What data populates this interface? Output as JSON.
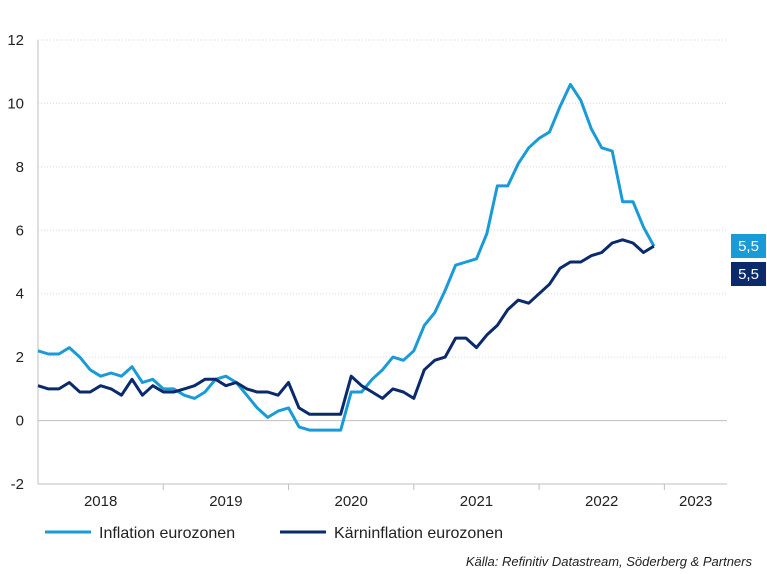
{
  "chart_data": {
    "type": "line",
    "ylim": [
      -2,
      12
    ],
    "yticks": [
      -2,
      0,
      2,
      4,
      6,
      8,
      10,
      12
    ],
    "ytick_labels": [
      "-2",
      "0",
      "2",
      "4",
      "6",
      "8",
      "10",
      "12"
    ],
    "x_start": "2018-01",
    "x_end": "2023-07",
    "year_labels": [
      "2018",
      "2019",
      "2020",
      "2021",
      "2022",
      "2023"
    ],
    "grid": "horizontal",
    "legend_position": "bottom-left",
    "series": [
      {
        "name": "Inflation eurozonen",
        "color": "#1a9bd7",
        "end_label": "5,5",
        "values": [
          {
            "x": "2018-01",
            "y": 2.2
          },
          {
            "x": "2018-02",
            "y": 2.1
          },
          {
            "x": "2018-03",
            "y": 2.1
          },
          {
            "x": "2018-04",
            "y": 2.3
          },
          {
            "x": "2018-05",
            "y": 2.0
          },
          {
            "x": "2018-06",
            "y": 1.6
          },
          {
            "x": "2018-07",
            "y": 1.4
          },
          {
            "x": "2018-08",
            "y": 1.5
          },
          {
            "x": "2018-09",
            "y": 1.4
          },
          {
            "x": "2018-10",
            "y": 1.7
          },
          {
            "x": "2018-11",
            "y": 1.2
          },
          {
            "x": "2018-12",
            "y": 1.3
          },
          {
            "x": "2019-01",
            "y": 1.0
          },
          {
            "x": "2019-02",
            "y": 1.0
          },
          {
            "x": "2019-03",
            "y": 0.8
          },
          {
            "x": "2019-04",
            "y": 0.7
          },
          {
            "x": "2019-05",
            "y": 0.9
          },
          {
            "x": "2019-06",
            "y": 1.3
          },
          {
            "x": "2019-07",
            "y": 1.4
          },
          {
            "x": "2019-08",
            "y": 1.2
          },
          {
            "x": "2019-09",
            "y": 0.8
          },
          {
            "x": "2019-10",
            "y": 0.4
          },
          {
            "x": "2019-11",
            "y": 0.1
          },
          {
            "x": "2019-12",
            "y": 0.3
          },
          {
            "x": "2020-01",
            "y": 0.4
          },
          {
            "x": "2020-02",
            "y": -0.2
          },
          {
            "x": "2020-03",
            "y": -0.3
          },
          {
            "x": "2020-04",
            "y": -0.3
          },
          {
            "x": "2020-05",
            "y": -0.3
          },
          {
            "x": "2020-06",
            "y": -0.3
          },
          {
            "x": "2020-07",
            "y": 0.9
          },
          {
            "x": "2020-08",
            "y": 0.9
          },
          {
            "x": "2020-09",
            "y": 1.3
          },
          {
            "x": "2020-10",
            "y": 1.6
          },
          {
            "x": "2020-11",
            "y": 2.0
          },
          {
            "x": "2020-12",
            "y": 1.9
          },
          {
            "x": "2021-01",
            "y": 2.2
          },
          {
            "x": "2021-02",
            "y": 3.0
          },
          {
            "x": "2021-03",
            "y": 3.4
          },
          {
            "x": "2021-04",
            "y": 4.1
          },
          {
            "x": "2021-05",
            "y": 4.9
          },
          {
            "x": "2021-06",
            "y": 5.0
          },
          {
            "x": "2021-07",
            "y": 5.1
          },
          {
            "x": "2021-08",
            "y": 5.9
          },
          {
            "x": "2021-09",
            "y": 7.4
          },
          {
            "x": "2021-10",
            "y": 7.4
          },
          {
            "x": "2021-11",
            "y": 8.1
          },
          {
            "x": "2021-12",
            "y": 8.6
          },
          {
            "x": "2022-01",
            "y": 8.9
          },
          {
            "x": "2022-02",
            "y": 9.1
          },
          {
            "x": "2022-03",
            "y": 9.9
          },
          {
            "x": "2022-04",
            "y": 10.6
          },
          {
            "x": "2022-05",
            "y": 10.1
          },
          {
            "x": "2022-06",
            "y": 9.2
          },
          {
            "x": "2022-07",
            "y": 8.6
          },
          {
            "x": "2022-08",
            "y": 8.5
          },
          {
            "x": "2022-09",
            "y": 6.9
          },
          {
            "x": "2022-10",
            "y": 6.9
          },
          {
            "x": "2022-11",
            "y": 6.1
          },
          {
            "x": "2022-12",
            "y": 5.5
          }
        ]
      },
      {
        "name": "Kärninflation eurozonen",
        "color": "#0b2a6b",
        "end_label": "5,5",
        "values": [
          {
            "x": "2018-01",
            "y": 1.1
          },
          {
            "x": "2018-02",
            "y": 1.0
          },
          {
            "x": "2018-03",
            "y": 1.0
          },
          {
            "x": "2018-04",
            "y": 1.2
          },
          {
            "x": "2018-05",
            "y": 0.9
          },
          {
            "x": "2018-06",
            "y": 0.9
          },
          {
            "x": "2018-07",
            "y": 1.1
          },
          {
            "x": "2018-08",
            "y": 1.0
          },
          {
            "x": "2018-09",
            "y": 0.8
          },
          {
            "x": "2018-10",
            "y": 1.3
          },
          {
            "x": "2018-11",
            "y": 0.8
          },
          {
            "x": "2018-12",
            "y": 1.1
          },
          {
            "x": "2019-01",
            "y": 0.9
          },
          {
            "x": "2019-02",
            "y": 0.9
          },
          {
            "x": "2019-03",
            "y": 1.0
          },
          {
            "x": "2019-04",
            "y": 1.1
          },
          {
            "x": "2019-05",
            "y": 1.3
          },
          {
            "x": "2019-06",
            "y": 1.3
          },
          {
            "x": "2019-07",
            "y": 1.1
          },
          {
            "x": "2019-08",
            "y": 1.2
          },
          {
            "x": "2019-09",
            "y": 1.0
          },
          {
            "x": "2019-10",
            "y": 0.9
          },
          {
            "x": "2019-11",
            "y": 0.9
          },
          {
            "x": "2019-12",
            "y": 0.8
          },
          {
            "x": "2020-01",
            "y": 1.2
          },
          {
            "x": "2020-02",
            "y": 0.4
          },
          {
            "x": "2020-03",
            "y": 0.2
          },
          {
            "x": "2020-04",
            "y": 0.2
          },
          {
            "x": "2020-05",
            "y": 0.2
          },
          {
            "x": "2020-06",
            "y": 0.2
          },
          {
            "x": "2020-07",
            "y": 1.4
          },
          {
            "x": "2020-08",
            "y": 1.1
          },
          {
            "x": "2020-09",
            "y": 0.9
          },
          {
            "x": "2020-10",
            "y": 0.7
          },
          {
            "x": "2020-11",
            "y": 1.0
          },
          {
            "x": "2020-12",
            "y": 0.9
          },
          {
            "x": "2021-01",
            "y": 0.7
          },
          {
            "x": "2021-02",
            "y": 1.6
          },
          {
            "x": "2021-03",
            "y": 1.9
          },
          {
            "x": "2021-04",
            "y": 2.0
          },
          {
            "x": "2021-05",
            "y": 2.6
          },
          {
            "x": "2021-06",
            "y": 2.6
          },
          {
            "x": "2021-07",
            "y": 2.3
          },
          {
            "x": "2021-08",
            "y": 2.7
          },
          {
            "x": "2021-09",
            "y": 3.0
          },
          {
            "x": "2021-10",
            "y": 3.5
          },
          {
            "x": "2021-11",
            "y": 3.8
          },
          {
            "x": "2021-12",
            "y": 3.7
          },
          {
            "x": "2022-01",
            "y": 4.0
          },
          {
            "x": "2022-02",
            "y": 4.3
          },
          {
            "x": "2022-03",
            "y": 4.8
          },
          {
            "x": "2022-04",
            "y": 5.0
          },
          {
            "x": "2022-05",
            "y": 5.0
          },
          {
            "x": "2022-06",
            "y": 5.2
          },
          {
            "x": "2022-07",
            "y": 5.3
          },
          {
            "x": "2022-08",
            "y": 5.6
          },
          {
            "x": "2022-09",
            "y": 5.7
          },
          {
            "x": "2022-10",
            "y": 5.6
          },
          {
            "x": "2022-11",
            "y": 5.3
          },
          {
            "x": "2022-12",
            "y": 5.5
          }
        ]
      }
    ],
    "source": "Källa: Refinitiv Datastream, Söderberg & Partners"
  }
}
